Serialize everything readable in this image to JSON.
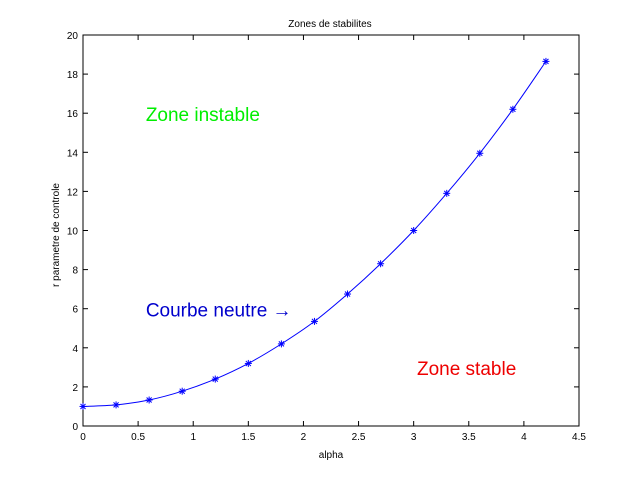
{
  "chart_data": {
    "type": "line",
    "title": "Zones de stabilites",
    "xlabel": "alpha",
    "ylabel": "r parametre de controle",
    "xlim": [
      0,
      4.5
    ],
    "ylim": [
      0,
      20
    ],
    "xticks": [
      "0",
      "0.5",
      "1",
      "1.5",
      "2",
      "2.5",
      "3",
      "3.5",
      "4",
      "4.5"
    ],
    "yticks": [
      "0",
      "2",
      "4",
      "6",
      "8",
      "10",
      "12",
      "14",
      "16",
      "18",
      "20"
    ],
    "grid": false,
    "marker": "*",
    "line_color": "#0000ff",
    "series": [
      {
        "x": [
          0,
          0.3,
          0.6,
          0.9,
          1.2,
          1.5,
          1.8,
          2.1,
          2.4,
          2.7,
          3.0,
          3.3,
          3.6,
          3.9,
          4.2
        ],
        "y": [
          1.0,
          1.08,
          1.33,
          1.78,
          2.4,
          3.2,
          4.2,
          5.35,
          6.75,
          8.3,
          10.0,
          11.9,
          13.95,
          16.2,
          18.65
        ]
      }
    ],
    "annotations": [
      {
        "text": "Zone instable",
        "x": 0.57,
        "y": 15.6,
        "color": "#00ee00"
      },
      {
        "text": "Courbe neutre →",
        "x": 0.57,
        "y": 5.6,
        "color": "#0000cc"
      },
      {
        "text": "Zone stable",
        "x": 3.03,
        "y": 2.6,
        "color": "#ee0000"
      }
    ]
  }
}
